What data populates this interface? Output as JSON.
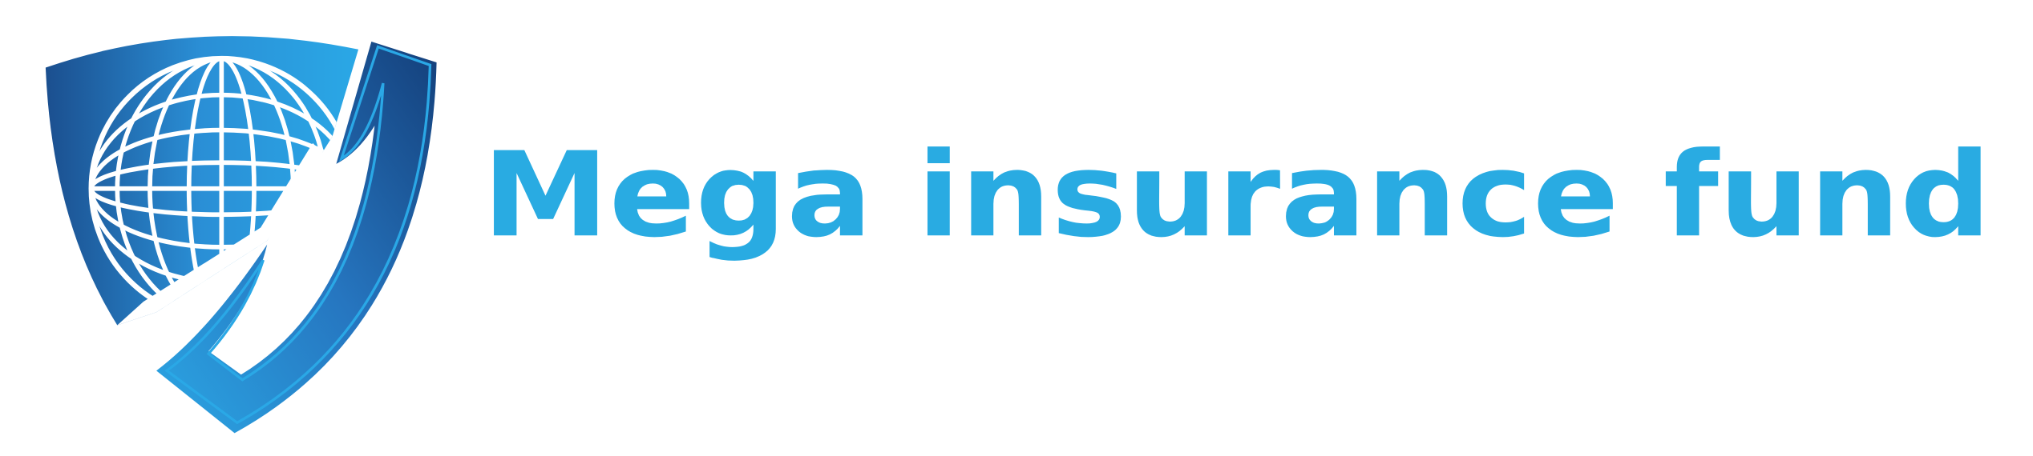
{
  "brand": {
    "name": "Mega insurance fund"
  }
}
